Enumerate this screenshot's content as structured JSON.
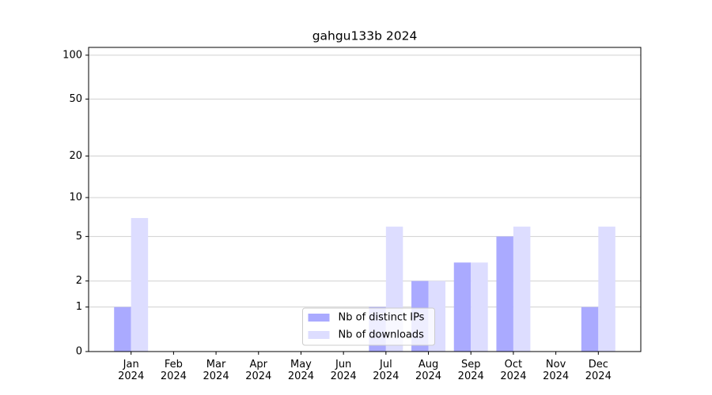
{
  "chart_data": {
    "type": "bar",
    "title": "gahgu133b 2024",
    "categories": [
      "Jan 2024",
      "Feb 2024",
      "Mar 2024",
      "Apr 2024",
      "May 2024",
      "Jun 2024",
      "Jul 2024",
      "Aug 2024",
      "Sep 2024",
      "Oct 2024",
      "Nov 2024",
      "Dec 2024"
    ],
    "series": [
      {
        "name": "Nb of distinct IPs",
        "color": "#aaaaff",
        "values": [
          1,
          0,
          0,
          0,
          0,
          0,
          1,
          2,
          3,
          5,
          0,
          1
        ]
      },
      {
        "name": "Nb of downloads",
        "color": "#ddddff",
        "values": [
          7,
          0,
          0,
          0,
          0,
          0,
          6,
          2,
          3,
          6,
          0,
          6
        ]
      }
    ],
    "yscale": "log1p",
    "ylim": [
      0,
      113
    ],
    "yticks": [
      0,
      1,
      2,
      5,
      10,
      20,
      50,
      100
    ],
    "grid": true,
    "legend": "lower center"
  }
}
